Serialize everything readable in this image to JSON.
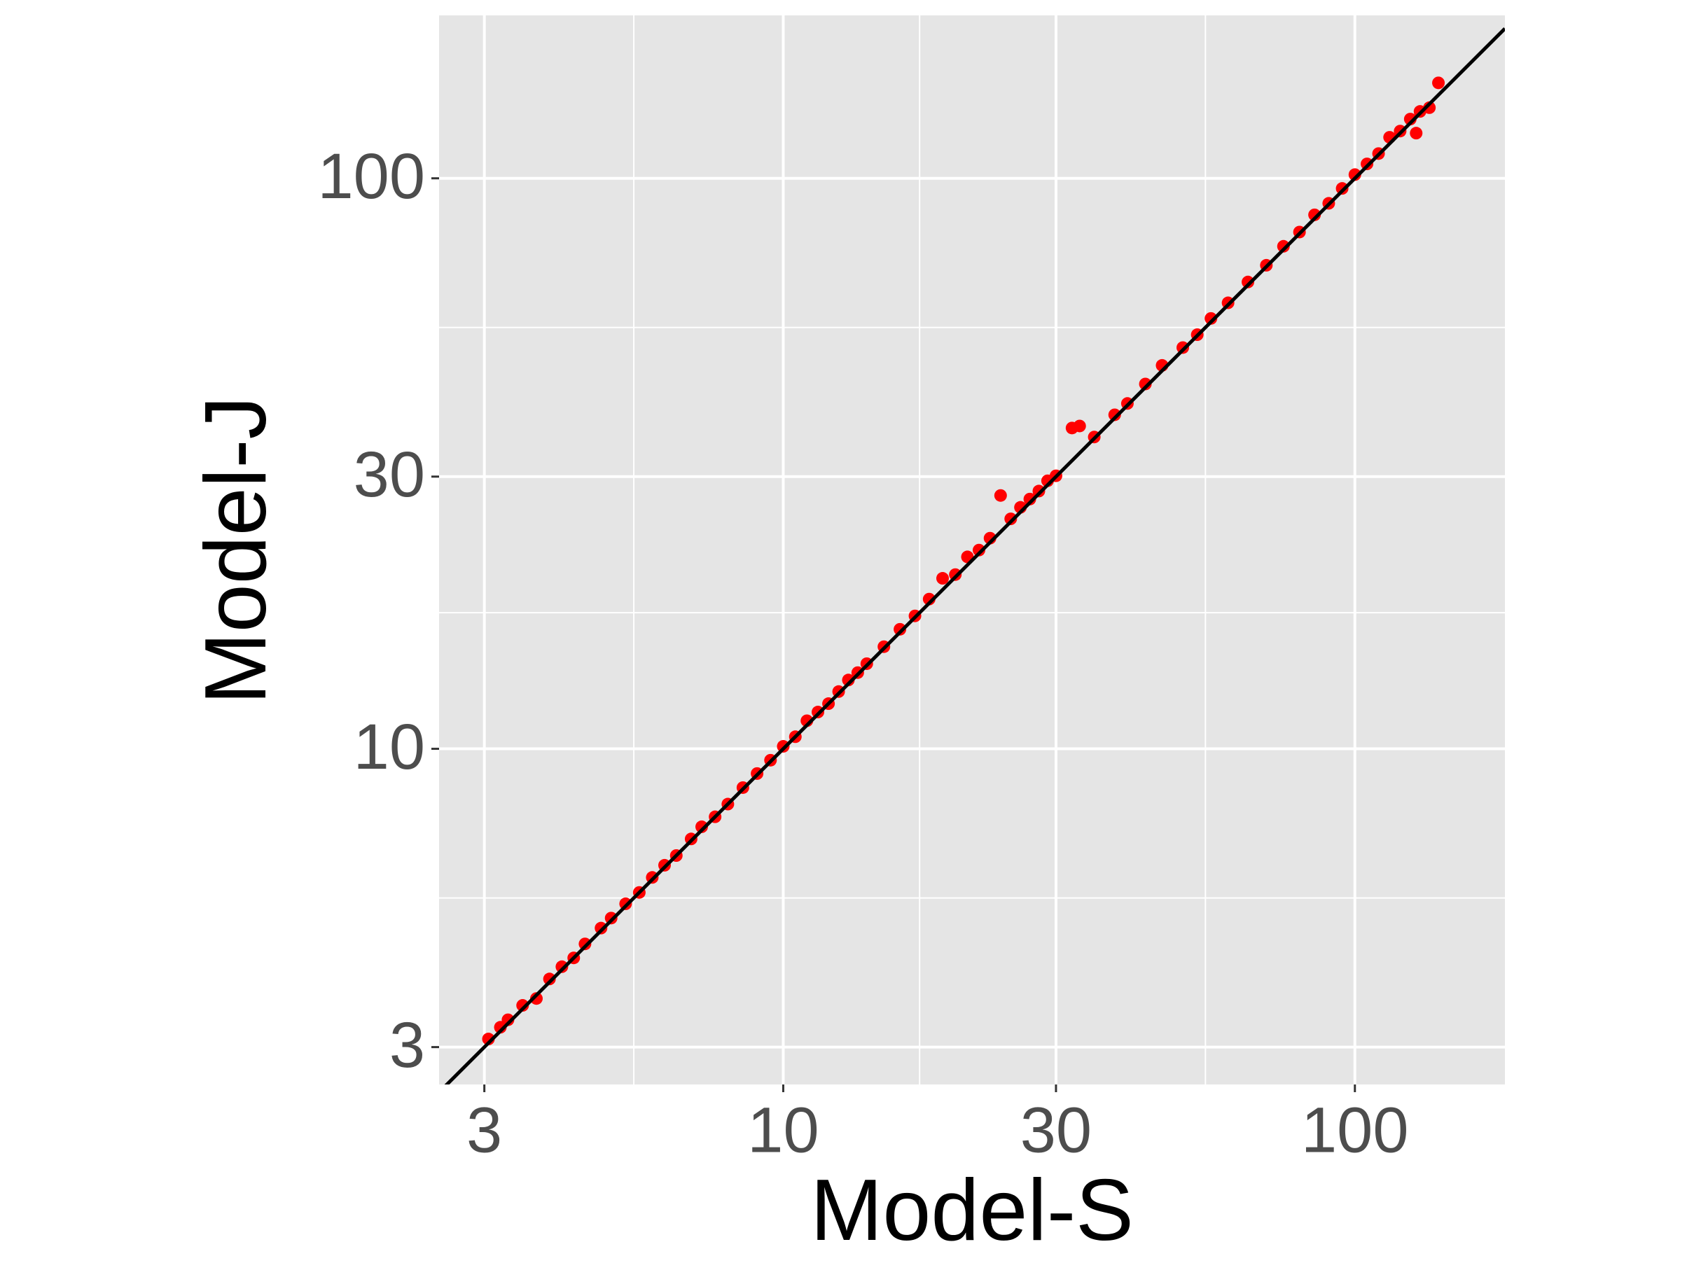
{
  "chart_data": {
    "type": "scatter",
    "x_label": "Model-S",
    "y_label": "Model-J",
    "log_x": true,
    "log_y": true,
    "grid": true,
    "xlim": [
      2.5,
      183
    ],
    "ylim": [
      2.58,
      193
    ],
    "xticks": [
      3,
      10,
      30,
      100
    ],
    "yticks": [
      3,
      10,
      30,
      100
    ],
    "reference_line": {
      "slope": 1,
      "intercept": 0,
      "color": "#000000"
    },
    "series": [
      {
        "color": "#ff0000",
        "x": [
          3.05,
          3.2,
          3.3,
          3.5,
          3.7,
          3.9,
          4.1,
          4.3,
          4.5,
          4.8,
          5.0,
          5.3,
          5.6,
          5.9,
          6.2,
          6.5,
          6.9,
          7.2,
          7.6,
          8.0,
          8.5,
          9.0,
          9.5,
          10.0,
          10.5,
          11.0,
          11.5,
          12.0,
          12.5,
          13.0,
          13.5,
          14.0,
          15.0,
          16.0,
          17.0,
          18.0,
          19.0,
          20.0,
          21.0,
          22.0,
          23.0,
          24.0,
          25.0,
          26.0,
          27.0,
          28.0,
          29.0,
          30.0,
          32.0,
          33.0,
          35.0,
          38.0,
          40.0,
          43.0,
          46.0,
          50.0,
          53.0,
          56.0,
          60.0,
          65.0,
          70.0,
          75.0,
          80.0,
          85.0,
          90.0,
          95.0,
          100.0,
          105.0,
          110.0,
          115.0,
          120.0,
          125.0,
          130.0,
          135.0,
          140.0,
          128.0
        ],
        "values": [
          3.1,
          3.25,
          3.35,
          3.55,
          3.65,
          3.95,
          4.15,
          4.3,
          4.55,
          4.85,
          5.05,
          5.35,
          5.6,
          5.95,
          6.25,
          6.5,
          6.95,
          7.3,
          7.6,
          8.0,
          8.55,
          9.05,
          9.55,
          10.1,
          10.5,
          11.2,
          11.6,
          12.0,
          12.6,
          13.2,
          13.6,
          14.1,
          15.1,
          16.2,
          17.1,
          18.3,
          19.9,
          20.2,
          21.7,
          22.3,
          23.4,
          27.8,
          25.3,
          26.5,
          27.4,
          28.3,
          29.5,
          30.1,
          36.5,
          36.8,
          35.2,
          38.5,
          40.3,
          43.6,
          47.0,
          50.5,
          53.2,
          56.8,
          60.5,
          65.8,
          70.4,
          76.0,
          80.5,
          86.3,
          90.4,
          96.0,
          101.5,
          106,
          110.5,
          118,
          121,
          127,
          131,
          133,
          147,
          120
        ]
      }
    ]
  }
}
